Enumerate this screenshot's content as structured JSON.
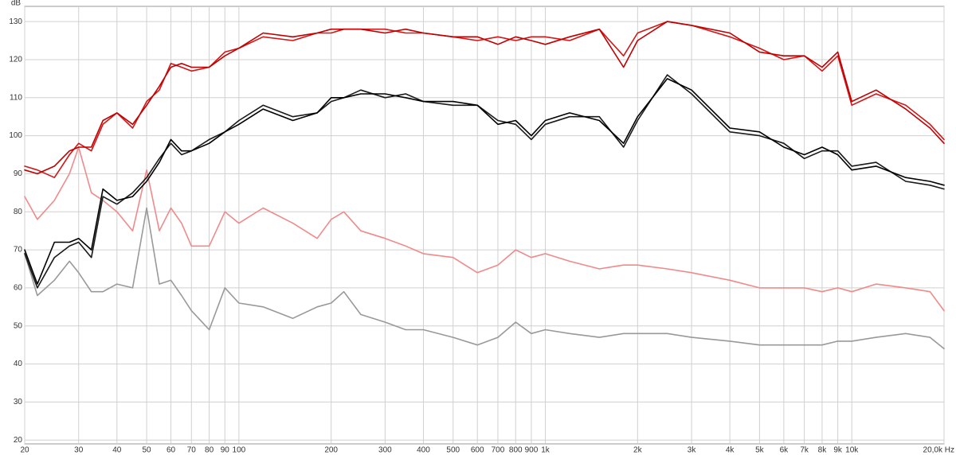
{
  "chart_data": {
    "type": "line",
    "y_label": "dB",
    "x_scale": "log",
    "grid": true,
    "x": [
      20,
      22,
      25,
      28,
      30,
      33,
      36,
      40,
      45,
      50,
      55,
      60,
      65,
      70,
      80,
      90,
      100,
      120,
      150,
      180,
      200,
      220,
      250,
      300,
      350,
      400,
      500,
      600,
      700,
      800,
      900,
      1000,
      1200,
      1500,
      1800,
      2000,
      2500,
      3000,
      4000,
      5000,
      6000,
      7000,
      8000,
      9000,
      10000,
      12000,
      15000,
      18000,
      20000
    ],
    "series": [
      {
        "color": "#c00000",
        "values": [
          91,
          90,
          92,
          96,
          97,
          97,
          104,
          106,
          103,
          108,
          113,
          118,
          119,
          118,
          118,
          121,
          123,
          127,
          126,
          127,
          128,
          128,
          128,
          127,
          128,
          127,
          126,
          126,
          124,
          126,
          125,
          124,
          126,
          128,
          118,
          125,
          130,
          129,
          127,
          122,
          121,
          121,
          118,
          122,
          109,
          112,
          107,
          102,
          98
        ]
      },
      {
        "color": "#d01818",
        "values": [
          92,
          91,
          89,
          95,
          98,
          96,
          103,
          106,
          102,
          109,
          112,
          119,
          118,
          117,
          118,
          122,
          123,
          126,
          125,
          127,
          127,
          128,
          128,
          128,
          127,
          127,
          126,
          125,
          126,
          125,
          126,
          126,
          125,
          128,
          121,
          127,
          130,
          129,
          126,
          123,
          120,
          121,
          117,
          121,
          108,
          111,
          108,
          103,
          99
        ]
      },
      {
        "color": "#000000",
        "values": [
          70,
          61,
          72,
          72,
          73,
          70,
          86,
          83,
          84,
          88,
          93,
          99,
          96,
          96,
          98,
          101,
          103,
          107,
          104,
          106,
          110,
          110,
          111,
          111,
          110,
          109,
          109,
          108,
          103,
          104,
          100,
          104,
          106,
          104,
          98,
          105,
          115,
          112,
          102,
          101,
          97,
          95,
          97,
          95,
          91,
          92,
          89,
          88,
          87
        ]
      },
      {
        "color": "#1a1a1a",
        "values": [
          69,
          60,
          68,
          71,
          72,
          68,
          84,
          82,
          85,
          89,
          94,
          98,
          95,
          96,
          99,
          101,
          104,
          108,
          105,
          106,
          109,
          110,
          112,
          110,
          111,
          109,
          108,
          108,
          104,
          103,
          99,
          103,
          105,
          105,
          97,
          104,
          116,
          111,
          101,
          100,
          98,
          94,
          96,
          96,
          92,
          93,
          88,
          87,
          86
        ]
      },
      {
        "color": "#f08a8a",
        "values": [
          84,
          78,
          83,
          90,
          97,
          85,
          83,
          80,
          75,
          91,
          75,
          81,
          77,
          71,
          71,
          80,
          77,
          81,
          77,
          73,
          78,
          80,
          75,
          73,
          71,
          69,
          68,
          64,
          66,
          70,
          68,
          69,
          67,
          65,
          66,
          66,
          65,
          64,
          62,
          60,
          60,
          60,
          59,
          60,
          59,
          61,
          60,
          59,
          54
        ]
      },
      {
        "color": "#999999",
        "values": [
          69,
          58,
          62,
          67,
          64,
          59,
          59,
          61,
          60,
          81,
          61,
          62,
          58,
          54,
          49,
          60,
          56,
          55,
          52,
          55,
          56,
          59,
          53,
          51,
          49,
          49,
          47,
          45,
          47,
          51,
          48,
          49,
          48,
          47,
          48,
          48,
          48,
          47,
          46,
          45,
          45,
          45,
          45,
          46,
          46,
          47,
          48,
          47,
          44
        ]
      }
    ],
    "xlim": [
      20,
      20000
    ],
    "ylim": [
      19,
      134
    ],
    "xticks": [
      20,
      30,
      40,
      50,
      60,
      70,
      80,
      90,
      100,
      200,
      300,
      400,
      500,
      600,
      700,
      800,
      900,
      {
        "value": 1000,
        "label": "1k"
      },
      {
        "value": 2000,
        "label": "2k"
      },
      {
        "value": 3000,
        "label": "3k"
      },
      {
        "value": 4000,
        "label": "4k"
      },
      {
        "value": 5000,
        "label": "5k"
      },
      {
        "value": 6000,
        "label": "6k"
      },
      {
        "value": 7000,
        "label": "7k"
      },
      {
        "value": 8000,
        "label": "8k"
      },
      {
        "value": 9000,
        "label": "9k"
      },
      {
        "value": 10000,
        "label": "10k"
      },
      {
        "value": 20000,
        "label": "20,0k Hz"
      }
    ],
    "yticks": [
      20,
      30,
      40,
      50,
      60,
      70,
      80,
      90,
      100,
      110,
      120,
      130
    ]
  }
}
